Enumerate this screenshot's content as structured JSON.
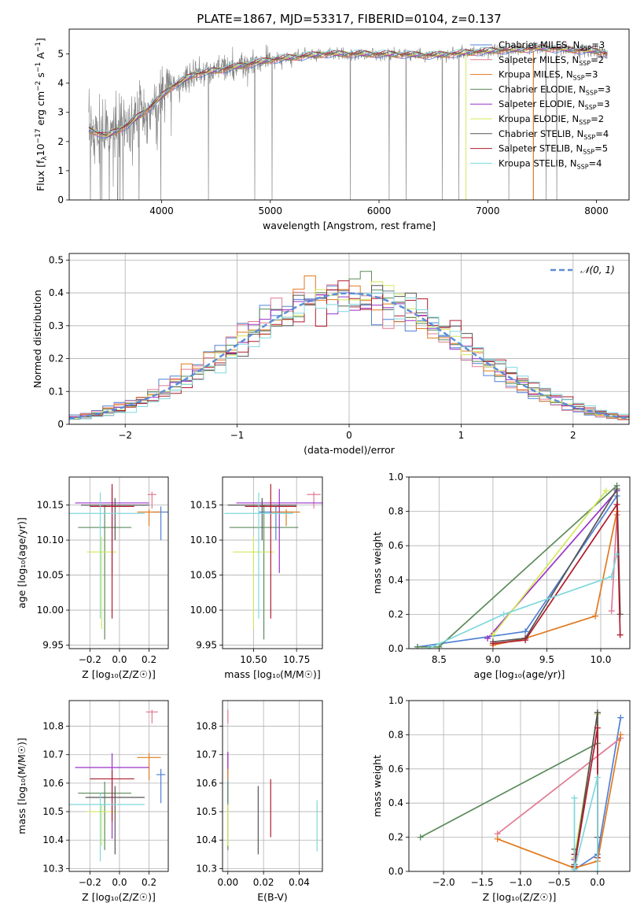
{
  "title": "PLATE=1867, MJD=53317, FIBERID=0104, z=0.137",
  "series_styles": [
    {
      "name": "Chabrier MILES",
      "nssp": "3",
      "color": "#4f81d6"
    },
    {
      "name": "Salpeter MILES",
      "nssp": "2",
      "color": "#e07b91"
    },
    {
      "name": "Kroupa MILES",
      "nssp": "3",
      "color": "#e07a1f"
    },
    {
      "name": "Chabrier ELODIE",
      "nssp": "3",
      "color": "#5a8a5a"
    },
    {
      "name": "Salpeter ELODIE",
      "nssp": "3",
      "color": "#9b30c8"
    },
    {
      "name": "Kroupa ELODIE",
      "nssp": "2",
      "color": "#d4e85a"
    },
    {
      "name": "Chabrier STELIB",
      "nssp": "4",
      "color": "#555555"
    },
    {
      "name": "Salpeter STELIB",
      "nssp": "5",
      "color": "#b01c2e"
    },
    {
      "name": "Kroupa STELIB",
      "nssp": "4",
      "color": "#7fd8dc"
    }
  ],
  "chart_data": [
    {
      "id": "spectrum",
      "type": "line",
      "xlabel": "wavelength [Angstrom, rest frame]",
      "xlim": [
        3150,
        8300
      ],
      "ylim": [
        0,
        5.85
      ],
      "xticks": [
        4000,
        5000,
        6000,
        7000,
        8000
      ],
      "yticks": [
        0,
        1,
        2,
        3,
        4,
        5
      ],
      "continuum_x": [
        3330,
        3500,
        3700,
        3900,
        4100,
        4300,
        4600,
        5000,
        5500,
        6000,
        6500,
        7000,
        7500,
        8000,
        8100
      ],
      "continuum_y": [
        2.4,
        2.2,
        2.6,
        3.2,
        3.9,
        4.3,
        4.5,
        4.8,
        5.0,
        5.0,
        4.95,
        5.1,
        5.2,
        5.1,
        5.0
      ],
      "legend": "upper right"
    },
    {
      "id": "residuals",
      "type": "bar",
      "ylabel": "Normed distribution",
      "xlabel": "(data-model)/error",
      "xlim": [
        -2.5,
        2.5
      ],
      "ylim": [
        0,
        0.52
      ],
      "xticks": [
        -2,
        -1,
        0,
        1,
        2
      ],
      "yticks": [
        0.0,
        0.1,
        0.2,
        0.3,
        0.4,
        0.5
      ],
      "bin_width": 0.1,
      "reference_label": "𝒩(0, 1)",
      "reference_color": "#5b8ed6",
      "legend": "upper right",
      "grid": true
    },
    {
      "id": "age-vs-Z",
      "type": "scatter",
      "xlabel": "Z [log₁₀(Z/Z☉)]",
      "ylabel": "age  [log₁₀(age/yr)]",
      "xlim": [
        -0.34,
        0.33
      ],
      "ylim": [
        9.945,
        10.19
      ],
      "xticks": [
        -0.2,
        0.0,
        0.2
      ],
      "xticklabels": [
        "−0.2",
        "0.0",
        "0.2"
      ],
      "yticks": [
        9.95,
        10.0,
        10.05,
        10.1,
        10.15
      ],
      "yticklabels": [
        "9.95",
        "10.00",
        "10.05",
        "10.10",
        "10.15"
      ],
      "points": [
        {
          "series": 0,
          "x": 0.28,
          "y": 10.14,
          "xerr": 0.05,
          "yerr": 0.04
        },
        {
          "series": 1,
          "x": 0.22,
          "y": 10.165,
          "xerr": 0.03,
          "yerr": 0.02
        },
        {
          "series": 2,
          "x": 0.2,
          "y": 10.14,
          "xerr": 0.08,
          "yerr": 0.02
        },
        {
          "series": 3,
          "x": -0.1,
          "y": 10.118,
          "xerr": 0.18,
          "yerr": 0.16
        },
        {
          "series": 4,
          "x": -0.05,
          "y": 10.153,
          "xerr": 0.25,
          "yerr": 0.1
        },
        {
          "series": 5,
          "x": -0.12,
          "y": 10.083,
          "xerr": 0.1,
          "yerr": 0.11
        },
        {
          "series": 6,
          "x": -0.03,
          "y": 10.15,
          "xerr": 0.23,
          "yerr": 0.05
        },
        {
          "series": 7,
          "x": -0.05,
          "y": 10.148,
          "xerr": 0.15,
          "yerr": 0.16
        },
        {
          "series": 8,
          "x": -0.13,
          "y": 10.138,
          "xerr": 0.3,
          "yerr": 0.15
        }
      ]
    },
    {
      "id": "age-vs-mass",
      "type": "scatter",
      "xlabel": "mass [log₁₀(M/M☉)]",
      "ylabel": "",
      "xlim": [
        10.32,
        10.9
      ],
      "ylim": [
        9.945,
        10.19
      ],
      "xticks": [
        10.5,
        10.75
      ],
      "xticklabels": [
        "10.50",
        "10.75"
      ],
      "yticks": [
        9.95,
        10.0,
        10.05,
        10.1,
        10.15
      ],
      "yticklabels": [
        "9.95",
        "10.00",
        "10.05",
        "10.10",
        "10.15"
      ],
      "points": [
        {
          "series": 0,
          "x": 10.63,
          "y": 10.14,
          "xerr": 0.1,
          "yerr": 0.04
        },
        {
          "series": 1,
          "x": 10.85,
          "y": 10.165,
          "xerr": 0.04,
          "yerr": 0.02
        },
        {
          "series": 2,
          "x": 10.69,
          "y": 10.14,
          "xerr": 0.08,
          "yerr": 0.02
        },
        {
          "series": 3,
          "x": 10.56,
          "y": 10.118,
          "xerr": 0.2,
          "yerr": 0.16
        },
        {
          "series": 4,
          "x": 10.65,
          "y": 10.153,
          "xerr": 0.25,
          "yerr": 0.1
        },
        {
          "series": 5,
          "x": 10.5,
          "y": 10.083,
          "xerr": 0.12,
          "yerr": 0.11
        },
        {
          "series": 6,
          "x": 10.55,
          "y": 10.15,
          "xerr": 0.2,
          "yerr": 0.05
        },
        {
          "series": 7,
          "x": 10.6,
          "y": 10.148,
          "xerr": 0.15,
          "yerr": 0.16
        },
        {
          "series": 8,
          "x": 10.53,
          "y": 10.138,
          "xerr": 0.2,
          "yerr": 0.15
        }
      ]
    },
    {
      "id": "weight-vs-age",
      "type": "line",
      "xlabel": "age  [log₁₀(age/yr)]",
      "ylabel": "mass weight",
      "xlim": [
        8.22,
        10.27
      ],
      "ylim": [
        0,
        1
      ],
      "xticks": [
        8.5,
        9.0,
        9.5,
        10.0
      ],
      "xticklabels": [
        "8.5",
        "9.0",
        "9.5",
        "10.0"
      ],
      "yticks": [
        0,
        0.2,
        0.4,
        0.6,
        0.8,
        1.0
      ],
      "yticklabels": [
        "0.0",
        "0.2",
        "0.4",
        "0.6",
        "0.8",
        "1.0"
      ],
      "lines": [
        {
          "series": 0,
          "x": [
            8.3,
            9.3,
            10.15
          ],
          "y": [
            0.01,
            0.1,
            0.89
          ]
        },
        {
          "series": 1,
          "x": [
            10.1,
            10.15
          ],
          "y": [
            0.22,
            0.78
          ]
        },
        {
          "series": 2,
          "x": [
            9.0,
            9.3,
            9.95,
            10.15
          ],
          "y": [
            0.02,
            0.06,
            0.19,
            0.8
          ]
        },
        {
          "series": 3,
          "x": [
            8.3,
            8.5,
            10.15
          ],
          "y": [
            0.01,
            0.01,
            0.95
          ]
        },
        {
          "series": 4,
          "x": [
            8.95,
            10.15
          ],
          "y": [
            0.06,
            0.92
          ]
        },
        {
          "series": 5,
          "x": [
            9.0,
            10.05
          ],
          "y": [
            0.08,
            0.92
          ]
        },
        {
          "series": 6,
          "x": [
            9.0,
            9.3,
            10.15,
            10.18
          ],
          "y": [
            0.04,
            0.06,
            0.93,
            0.2
          ]
        },
        {
          "series": 7,
          "x": [
            9.0,
            9.3,
            10.15,
            10.18
          ],
          "y": [
            0.03,
            0.05,
            0.84,
            0.08
          ]
        },
        {
          "series": 8,
          "x": [
            8.4,
            9.1,
            10.1,
            10.15
          ],
          "y": [
            0.0,
            0.2,
            0.42,
            0.55
          ]
        }
      ]
    },
    {
      "id": "mass-vs-Z",
      "type": "scatter",
      "xlabel": "Z [log₁₀(Z/Z☉)]",
      "ylabel": "mass [log₁₀(M/M☉)]",
      "xlim": [
        -0.34,
        0.33
      ],
      "ylim": [
        10.29,
        10.89
      ],
      "xticks": [
        -0.2,
        0.0,
        0.2
      ],
      "xticklabels": [
        "−0.2",
        "0.0",
        "0.2"
      ],
      "yticks": [
        10.3,
        10.4,
        10.5,
        10.6,
        10.7,
        10.8
      ],
      "yticklabels": [
        "10.3",
        "10.4",
        "10.5",
        "10.6",
        "10.7",
        "10.8"
      ],
      "points": [
        {
          "series": 0,
          "x": 0.28,
          "y": 10.63,
          "xerr": 0.03,
          "yerr": 0.1
        },
        {
          "series": 1,
          "x": 0.22,
          "y": 10.85,
          "xerr": 0.04,
          "yerr": 0.04
        },
        {
          "series": 2,
          "x": 0.2,
          "y": 10.69,
          "xerr": 0.08,
          "yerr": 0.08
        },
        {
          "series": 3,
          "x": -0.1,
          "y": 10.565,
          "xerr": 0.18,
          "yerr": 0.2
        },
        {
          "series": 4,
          "x": -0.05,
          "y": 10.655,
          "xerr": 0.25,
          "yerr": 0.25
        },
        {
          "series": 5,
          "x": -0.12,
          "y": 10.5,
          "xerr": 0.1,
          "yerr": 0.12
        },
        {
          "series": 6,
          "x": -0.03,
          "y": 10.55,
          "xerr": 0.2,
          "yerr": 0.2
        },
        {
          "series": 7,
          "x": -0.05,
          "y": 10.615,
          "xerr": 0.15,
          "yerr": 0.15
        },
        {
          "series": 8,
          "x": -0.13,
          "y": 10.525,
          "xerr": 0.3,
          "yerr": 0.2
        }
      ]
    },
    {
      "id": "mass-vs-ebv",
      "type": "scatter",
      "xlabel": "E(B-V)",
      "ylabel": "",
      "xlim": [
        -0.003,
        0.053
      ],
      "ylim": [
        10.29,
        10.89
      ],
      "xticks": [
        0.0,
        0.02,
        0.04
      ],
      "xticklabels": [
        "0.00",
        "0.02",
        "0.04"
      ],
      "yticks": [
        10.3,
        10.4,
        10.5,
        10.6,
        10.7,
        10.8
      ],
      "yticklabels": [
        "10.3",
        "10.4",
        "10.5",
        "10.6",
        "10.7",
        "10.8"
      ],
      "points": [
        {
          "series": 0,
          "x": 0.0,
          "y": 10.63,
          "xerr": 0,
          "yerr": 0.1
        },
        {
          "series": 1,
          "x": 0.0,
          "y": 10.85,
          "xerr": 0,
          "yerr": 0.04
        },
        {
          "series": 2,
          "x": 0.0,
          "y": 10.69,
          "xerr": 0,
          "yerr": 0.08
        },
        {
          "series": 3,
          "x": 0.0,
          "y": 10.565,
          "xerr": 0,
          "yerr": 0.2
        },
        {
          "series": 4,
          "x": 0.0,
          "y": 10.7,
          "xerr": 0,
          "yerr": 0.05
        },
        {
          "series": 5,
          "x": 0.0,
          "y": 10.5,
          "xerr": 0,
          "yerr": 0.12
        },
        {
          "series": 6,
          "x": 0.017,
          "y": 10.55,
          "xerr": 0,
          "yerr": 0.2
        },
        {
          "series": 7,
          "x": 0.024,
          "y": 10.58,
          "xerr": 0,
          "yerr": 0.17
        },
        {
          "series": 8,
          "x": 0.05,
          "y": 10.51,
          "xerr": 0,
          "yerr": 0.15
        }
      ]
    },
    {
      "id": "weight-vs-Z",
      "type": "line",
      "xlabel": "Z [log₁₀(Z/Z☉)]",
      "ylabel": "mass weight",
      "xlim": [
        -2.45,
        0.42
      ],
      "ylim": [
        0,
        1
      ],
      "xticks": [
        -2.0,
        -1.5,
        -1.0,
        -0.5,
        0.0
      ],
      "xticklabels": [
        "−2.0",
        "−1.5",
        "−1.0",
        "−0.5",
        "0.0"
      ],
      "yticks": [
        0,
        0.2,
        0.4,
        0.6,
        0.8,
        1.0
      ],
      "yticklabels": [
        "0.0",
        "0.2",
        "0.4",
        "0.6",
        "0.8",
        "1.0"
      ],
      "lines": [
        {
          "series": 0,
          "x": [
            -0.3,
            0.0,
            0.3
          ],
          "y": [
            0.01,
            0.1,
            0.9
          ]
        },
        {
          "series": 1,
          "x": [
            -1.3,
            0.3
          ],
          "y": [
            0.22,
            0.78
          ]
        },
        {
          "series": 2,
          "x": [
            -1.3,
            -0.3,
            0.0,
            0.3
          ],
          "y": [
            0.19,
            0.02,
            0.06,
            0.8
          ]
        },
        {
          "series": 3,
          "x": [
            -2.3,
            0.0,
            0.0
          ],
          "y": [
            0.2,
            0.75,
            0.93
          ]
        },
        {
          "series": 4,
          "x": [
            -0.3,
            0.0
          ],
          "y": [
            0.07,
            0.92
          ]
        },
        {
          "series": 5,
          "x": [
            -0.3,
            0.0
          ],
          "y": [
            0.08,
            0.92
          ]
        },
        {
          "series": 6,
          "x": [
            -0.3,
            -0.3,
            0.0,
            0.0
          ],
          "y": [
            0.13,
            0.04,
            0.93,
            0.2
          ]
        },
        {
          "series": 7,
          "x": [
            -0.3,
            -0.3,
            0.0,
            0.0
          ],
          "y": [
            0.1,
            0.03,
            0.84,
            0.08
          ]
        },
        {
          "series": 8,
          "x": [
            -0.3,
            -0.3,
            0.0,
            0.0
          ],
          "y": [
            0.43,
            0.01,
            0.55,
            0.0
          ]
        }
      ]
    }
  ]
}
